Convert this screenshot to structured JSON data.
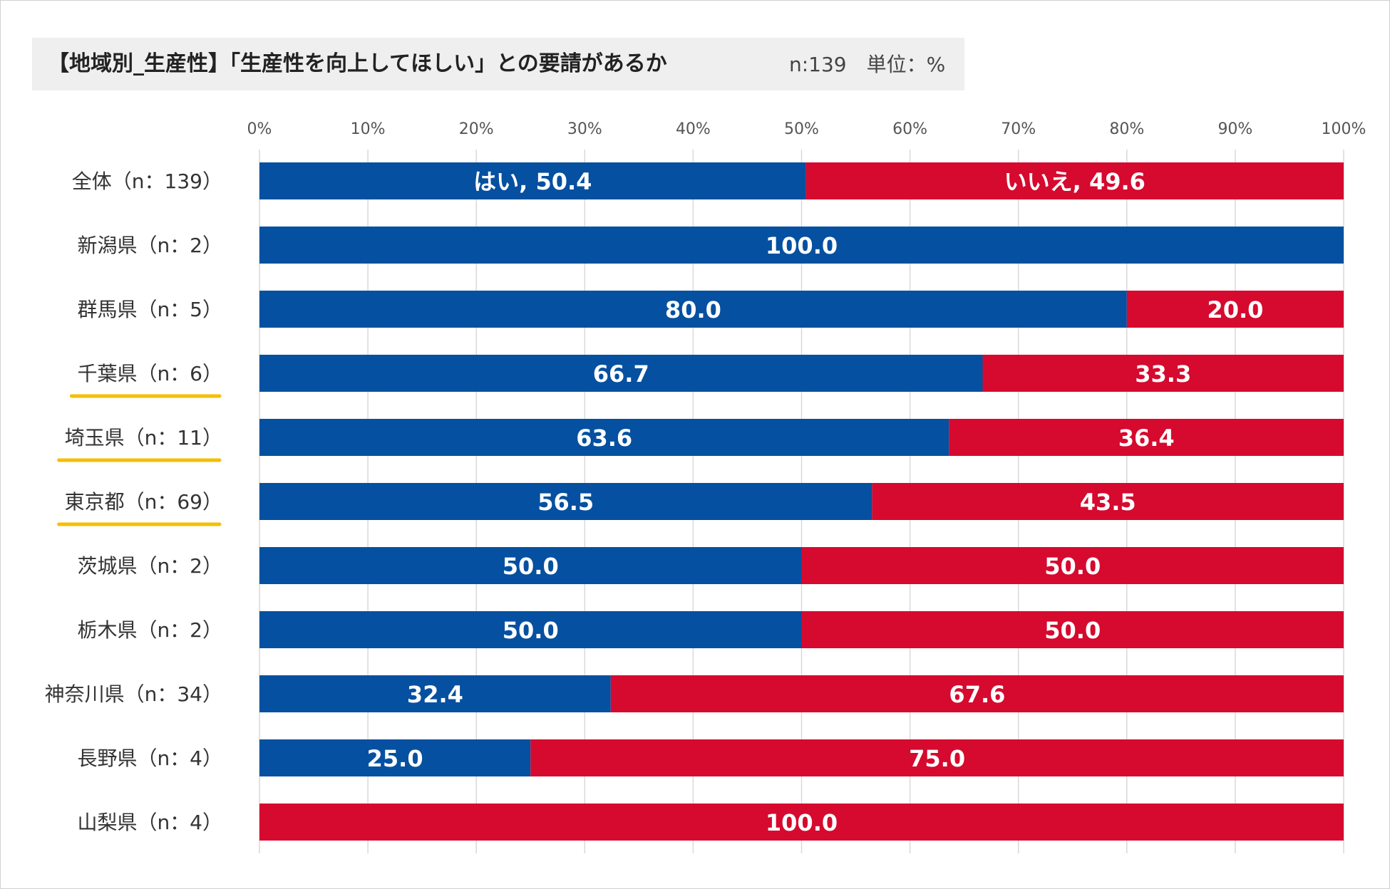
{
  "chart_data": {
    "type": "bar",
    "orientation": "horizontal",
    "stacked": "100%",
    "title": "【地域別_生産性】「生産性を向上してほしい」との要請があるか",
    "subtitle": "n:139　単位：%",
    "categories": [
      "全体（n：139）",
      "新潟県（n：2）",
      "群馬県（n：5）",
      "千葉県（n：6）",
      "埼玉県（n：11）",
      "東京都（n：69）",
      "茨城県（n：2）",
      "栃木県（n：2）",
      "神奈川県（n：34）",
      "長野県（n：4）",
      "山梨県（n：4）"
    ],
    "highlighted_categories": [
      "千葉県（n：6）",
      "埼玉県（n：11）",
      "東京都（n：69）"
    ],
    "series": [
      {
        "name": "はい",
        "color": "#0550a0",
        "values": [
          50.4,
          100.0,
          80.0,
          66.7,
          63.6,
          56.5,
          50.0,
          50.0,
          32.4,
          25.0,
          0
        ]
      },
      {
        "name": "いいえ",
        "color": "#d6092e",
        "values": [
          49.6,
          0,
          20.0,
          33.3,
          36.4,
          43.5,
          50.0,
          50.0,
          67.6,
          75.0,
          100.0
        ]
      }
    ],
    "data_labels": [
      [
        "はい, 50.4",
        "いいえ, 49.6"
      ],
      [
        "100.0",
        ""
      ],
      [
        "80.0",
        "20.0"
      ],
      [
        "66.7",
        "33.3"
      ],
      [
        "63.6",
        "36.4"
      ],
      [
        "56.5",
        "43.5"
      ],
      [
        "50.0",
        "50.0"
      ],
      [
        "50.0",
        "50.0"
      ],
      [
        "32.4",
        "67.6"
      ],
      [
        "25.0",
        "75.0"
      ],
      [
        "",
        "100.0"
      ]
    ],
    "x_ticks": [
      "0%",
      "10%",
      "20%",
      "30%",
      "40%",
      "50%",
      "60%",
      "70%",
      "80%",
      "90%",
      "100%"
    ],
    "xlim": [
      0,
      100
    ],
    "x_axis_position": "top",
    "grid": true,
    "highlight_color": "#f5bf00",
    "grid_color": "#d9d9d9"
  }
}
